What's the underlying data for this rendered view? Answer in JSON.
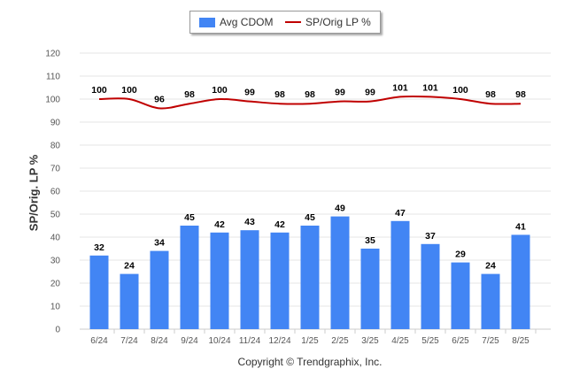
{
  "chart_data": {
    "type": "bar",
    "title": "",
    "xlabel": "",
    "ylabel": "SP/Orig. LP %",
    "ylim": [
      0,
      120
    ],
    "yticks": [
      0,
      10,
      20,
      30,
      40,
      50,
      60,
      70,
      80,
      90,
      100,
      110,
      120
    ],
    "grid": true,
    "legend_placement": "top-center",
    "categories": [
      "6/24",
      "7/24",
      "8/24",
      "9/24",
      "10/24",
      "11/24",
      "12/24",
      "1/25",
      "2/25",
      "3/25",
      "4/25",
      "5/25",
      "6/25",
      "7/25",
      "8/25"
    ],
    "series": [
      {
        "name": "Avg CDOM",
        "type": "bar",
        "color": "#4285f4",
        "values": [
          32,
          24,
          34,
          45,
          42,
          43,
          42,
          45,
          49,
          35,
          47,
          37,
          29,
          24,
          41
        ]
      },
      {
        "name": "SP/Orig LP %",
        "type": "line",
        "color": "#c00000",
        "values": [
          100,
          100,
          96,
          98,
          100,
          99,
          98,
          98,
          99,
          99,
          101,
          101,
          100,
          98,
          98
        ]
      }
    ]
  },
  "footer": {
    "copyright": "Copyright © Trendgraphix, Inc."
  }
}
